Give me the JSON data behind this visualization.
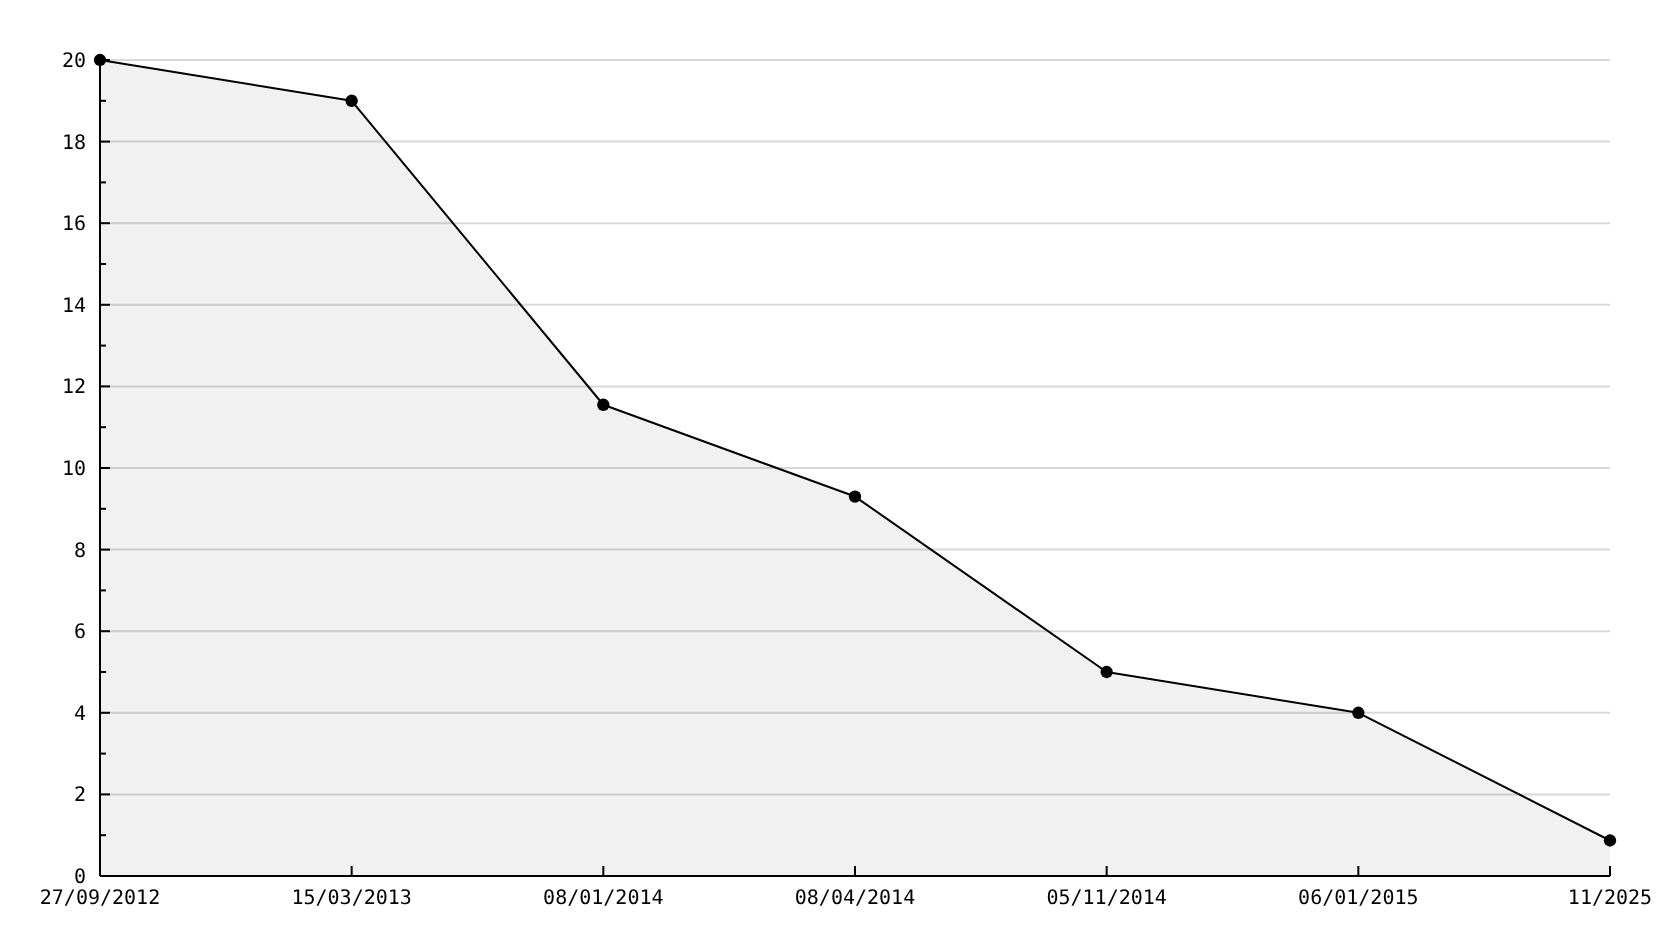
{
  "chart_data": {
    "type": "area",
    "categories": [
      "27/09/2012",
      "15/03/2013",
      "08/01/2014",
      "08/04/2014",
      "05/11/2014",
      "06/01/2015",
      "11/2025"
    ],
    "series": [
      {
        "color": "#000000",
        "values": [
          20,
          19,
          11.55,
          9.3,
          5,
          4,
          0.87
        ]
      }
    ],
    "ylim": [
      0,
      20
    ],
    "yticks": [
      0,
      {
        "value": 1,
        "label": null
      },
      2,
      {
        "value": 3,
        "label": null
      },
      4,
      {
        "value": 5,
        "label": null
      },
      6,
      {
        "value": 7,
        "label": null
      },
      8,
      {
        "value": 9,
        "label": null
      },
      10,
      {
        "value": 11,
        "label": null
      },
      12,
      {
        "value": 13,
        "label": null
      },
      14,
      {
        "value": 15,
        "label": null
      },
      16,
      {
        "value": 17,
        "label": null
      },
      18,
      {
        "value": 19,
        "label": null
      },
      20
    ],
    "grid": "y",
    "marker": "circle",
    "line_style": "solid"
  }
}
